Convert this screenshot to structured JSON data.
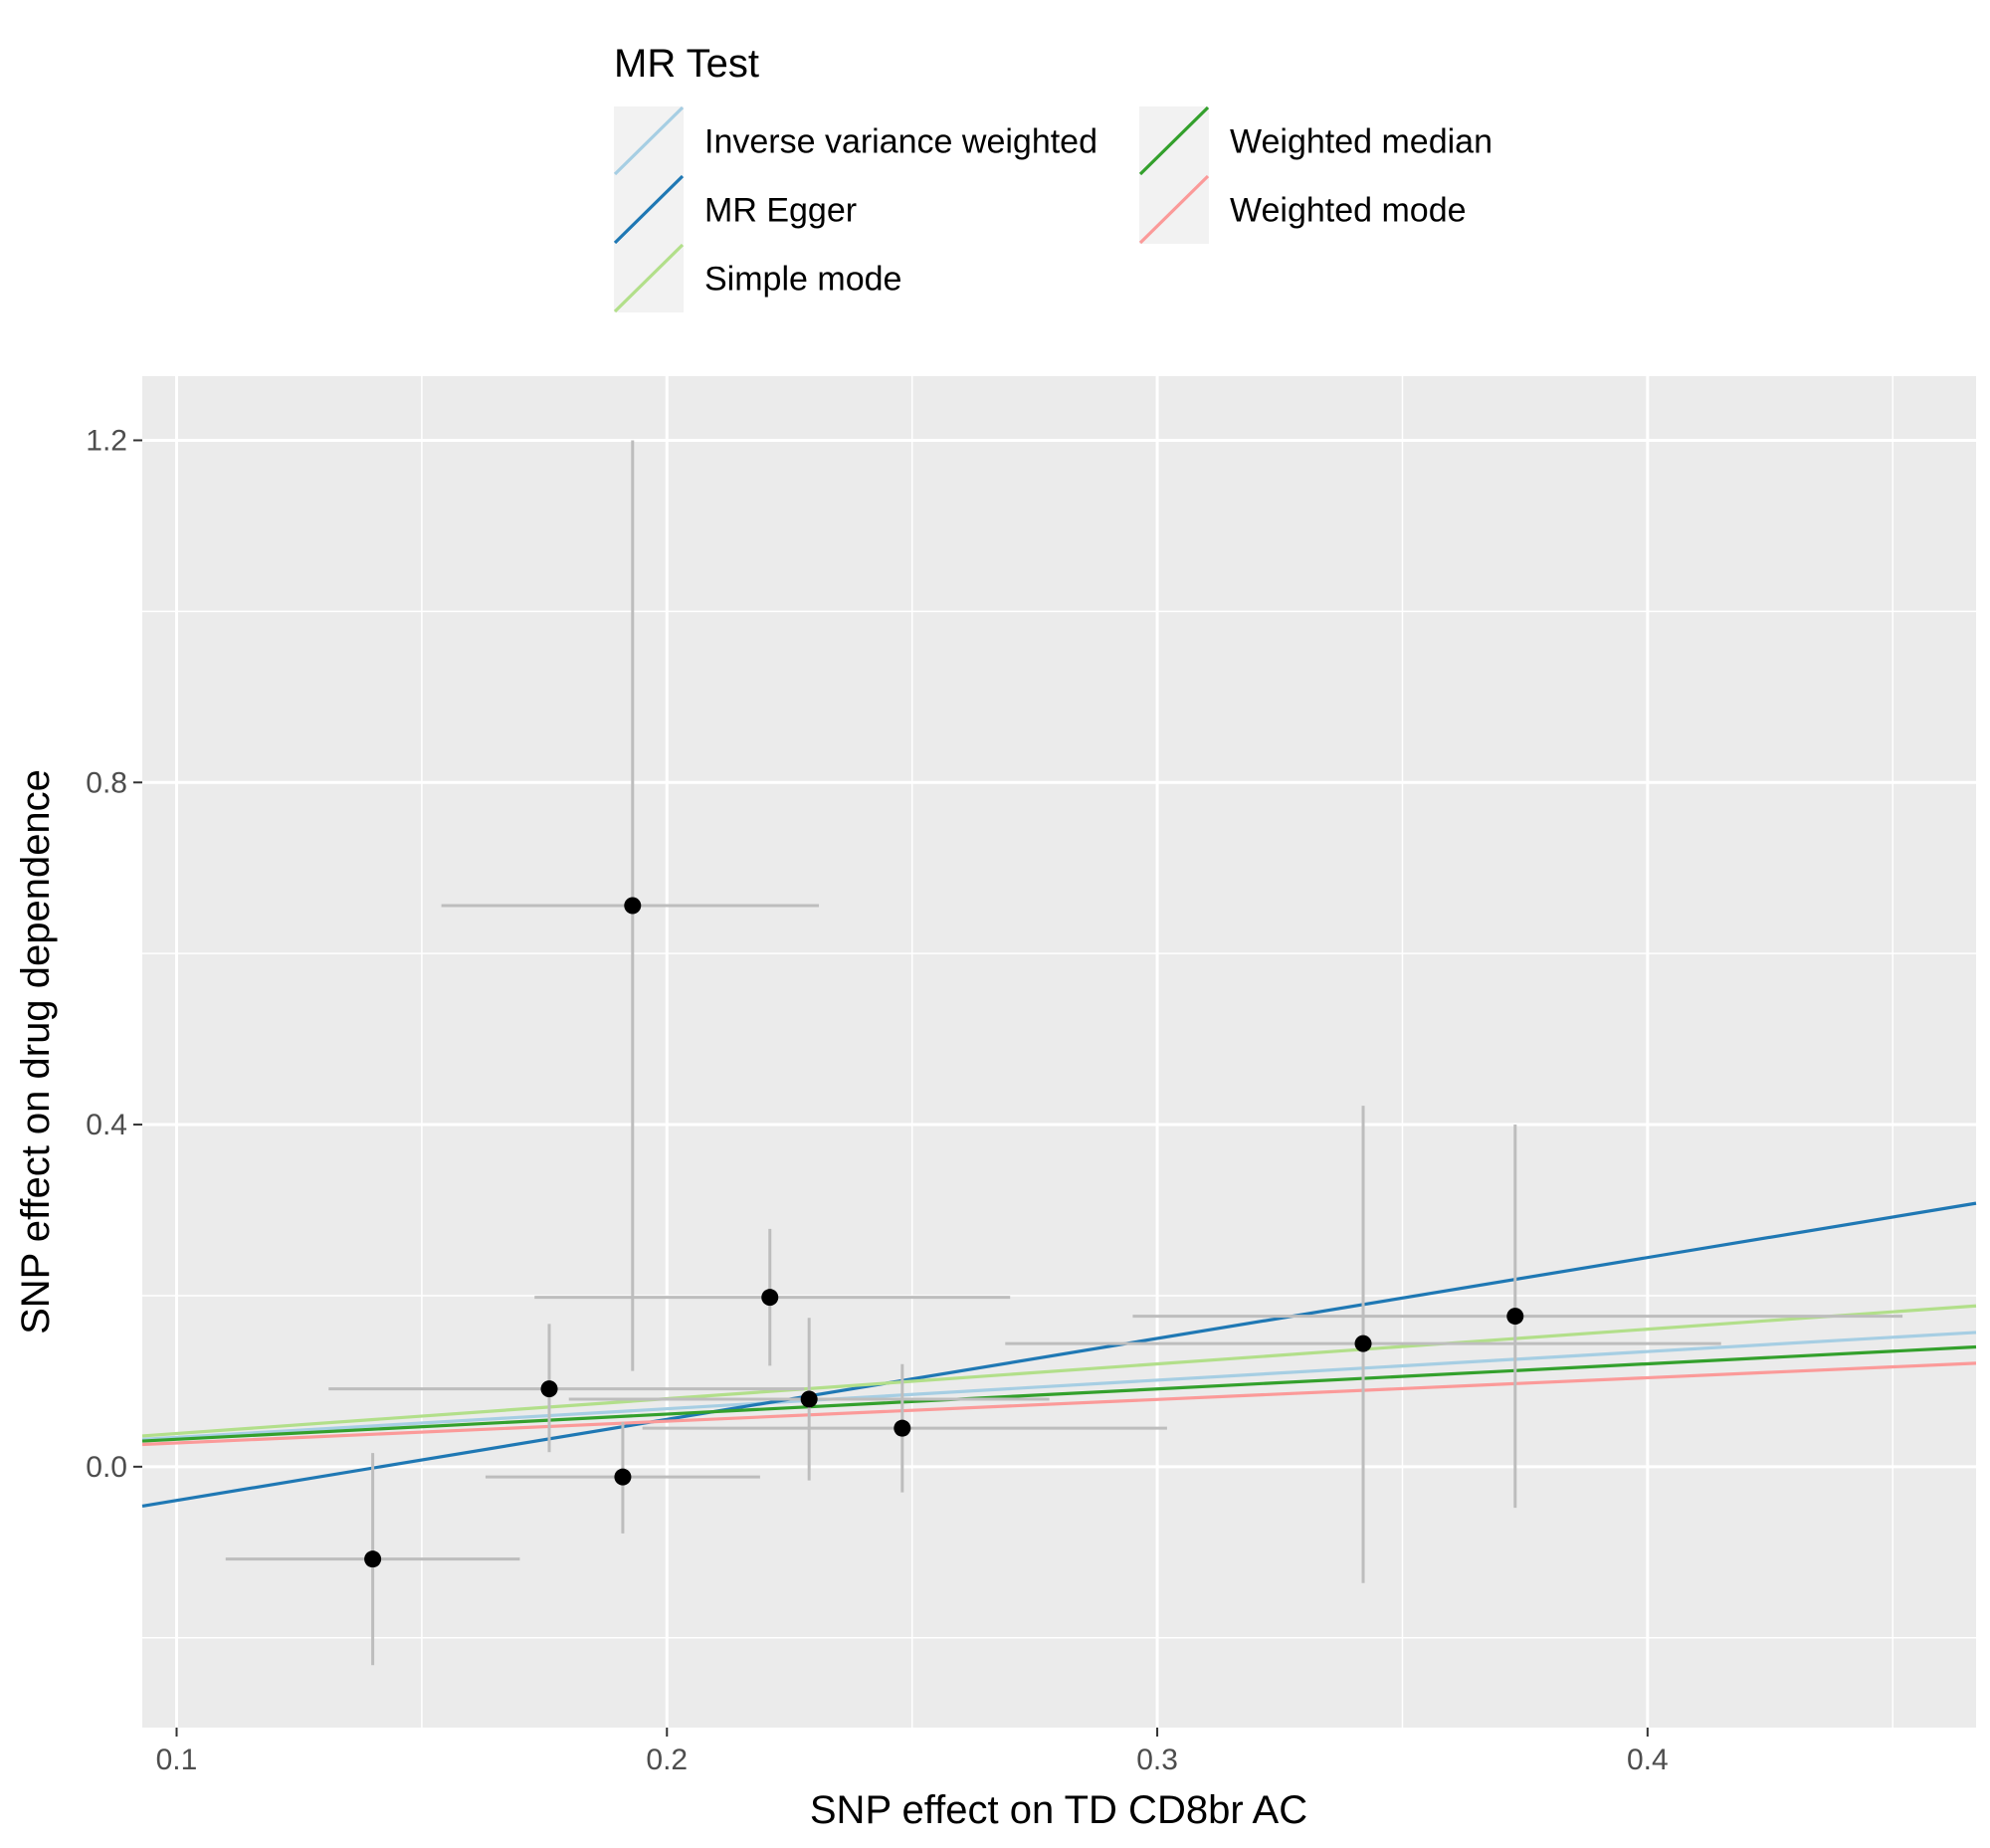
{
  "chart_data": {
    "type": "scatter",
    "title": "",
    "xlabel": "SNP effect on TD CD8br AC",
    "ylabel": "SNP effect on drug dependence",
    "xlim": [
      0.093,
      0.467
    ],
    "ylim": [
      -0.305,
      1.275
    ],
    "x_ticks": [
      0.1,
      0.2,
      0.3,
      0.4
    ],
    "x_tick_labels": [
      "0.1",
      "0.2",
      "0.3",
      "0.4"
    ],
    "x_minor_ticks": [
      0.15,
      0.25,
      0.35,
      0.45
    ],
    "y_ticks": [
      0.0,
      0.4,
      0.8,
      1.2
    ],
    "y_tick_labels": [
      "0.0",
      "0.4",
      "0.8",
      "1.2"
    ],
    "y_minor_ticks": [
      -0.2,
      0.2,
      0.6,
      1.0
    ],
    "grid": true,
    "legend": {
      "title": "MR Test",
      "position": "top",
      "entries": [
        {
          "label": "Inverse variance weighted",
          "color": "#a6cee3"
        },
        {
          "label": "MR Egger",
          "color": "#1f78b4"
        },
        {
          "label": "Simple mode",
          "color": "#b2df8a"
        },
        {
          "label": "Weighted median",
          "color": "#33a02c"
        },
        {
          "label": "Weighted mode",
          "color": "#fb9a99"
        }
      ]
    },
    "points": [
      {
        "x": 0.14,
        "y": -0.108,
        "x_lo": 0.11,
        "x_hi": 0.17,
        "y_lo": -0.232,
        "y_hi": 0.016
      },
      {
        "x": 0.176,
        "y": 0.091,
        "x_lo": 0.131,
        "x_hi": 0.228,
        "y_lo": 0.017,
        "y_hi": 0.167
      },
      {
        "x": 0.191,
        "y": -0.012,
        "x_lo": 0.163,
        "x_hi": 0.219,
        "y_lo": -0.078,
        "y_hi": 0.052
      },
      {
        "x": 0.193,
        "y": 0.656,
        "x_lo": 0.154,
        "x_hi": 0.231,
        "y_lo": 0.112,
        "y_hi": 1.2
      },
      {
        "x": 0.221,
        "y": 0.198,
        "x_lo": 0.173,
        "x_hi": 0.27,
        "y_lo": 0.118,
        "y_hi": 0.278
      },
      {
        "x": 0.229,
        "y": 0.079,
        "x_lo": 0.18,
        "x_hi": 0.278,
        "y_lo": -0.016,
        "y_hi": 0.174
      },
      {
        "x": 0.248,
        "y": 0.045,
        "x_lo": 0.195,
        "x_hi": 0.302,
        "y_lo": -0.03,
        "y_hi": 0.12
      },
      {
        "x": 0.342,
        "y": 0.144,
        "x_lo": 0.269,
        "x_hi": 0.415,
        "y_lo": -0.136,
        "y_hi": 0.422
      },
      {
        "x": 0.373,
        "y": 0.176,
        "x_lo": 0.295,
        "x_hi": 0.452,
        "y_lo": -0.048,
        "y_hi": 0.4
      }
    ],
    "lines": [
      {
        "name": "Inverse variance weighted",
        "color": "#a6cee3",
        "x": [
          0.093,
          0.467
        ],
        "y": [
          0.032,
          0.157
        ]
      },
      {
        "name": "MR Egger",
        "color": "#1f78b4",
        "x": [
          0.093,
          0.467
        ],
        "y": [
          -0.046,
          0.308
        ]
      },
      {
        "name": "Simple mode",
        "color": "#b2df8a",
        "x": [
          0.093,
          0.467
        ],
        "y": [
          0.036,
          0.188
        ]
      },
      {
        "name": "Weighted median",
        "color": "#33a02c",
        "x": [
          0.093,
          0.467
        ],
        "y": [
          0.03,
          0.14
        ]
      },
      {
        "name": "Weighted mode",
        "color": "#fb9a99",
        "x": [
          0.093,
          0.467
        ],
        "y": [
          0.026,
          0.121
        ]
      }
    ]
  }
}
